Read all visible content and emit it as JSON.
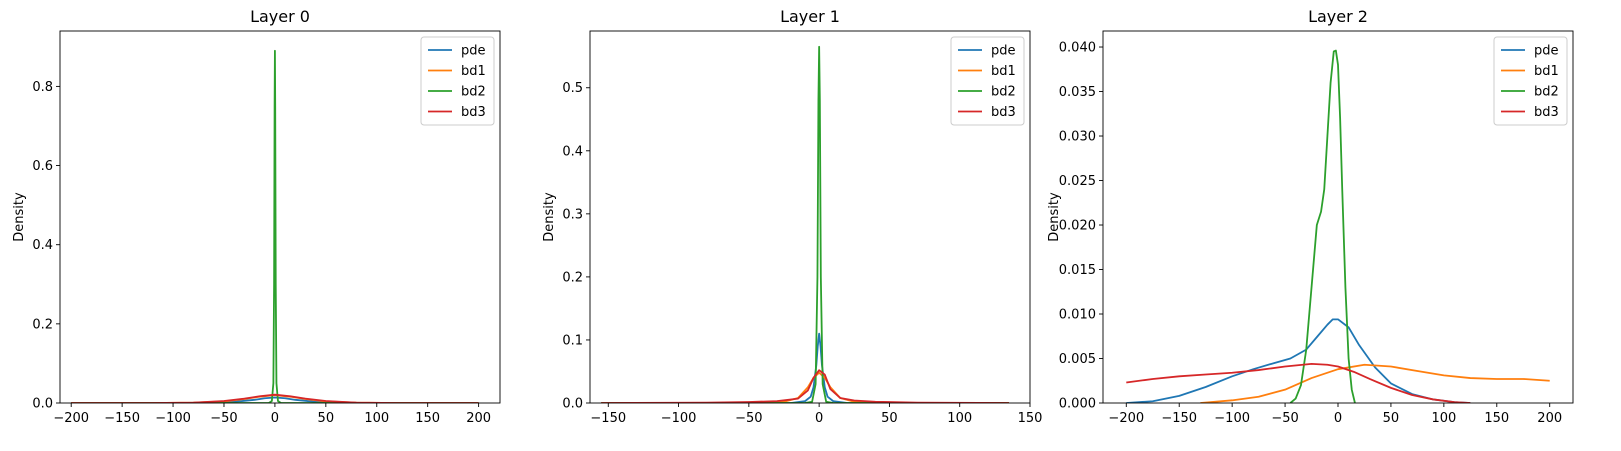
{
  "figure": {
    "background": "#ffffff"
  },
  "chart_data": [
    {
      "type": "line",
      "title": "Layer 0",
      "xlabel": "",
      "ylabel": "Density",
      "xlim": [
        -211,
        221
      ],
      "ylim": [
        0,
        0.94
      ],
      "xticks": [
        -200,
        -150,
        -100,
        -50,
        0,
        50,
        100,
        150,
        200
      ],
      "xtick_labels": [
        "−200",
        "−150",
        "−100",
        "−50",
        "0",
        "50",
        "100",
        "150",
        "200"
      ],
      "yticks": [
        0,
        0.2,
        0.4,
        0.6,
        0.8
      ],
      "ytick_labels": [
        "0.0",
        "0.2",
        "0.4",
        "0.6",
        "0.8"
      ],
      "legend": {
        "position": "top-right",
        "entries": [
          "pde",
          "bd1",
          "bd2",
          "bd3"
        ]
      },
      "grid": false,
      "series": [
        {
          "name": "pde",
          "color": "#1f77b4",
          "x": [
            -200,
            -100,
            -60,
            -40,
            -20,
            -10,
            0,
            10,
            20,
            40,
            60,
            100,
            200
          ],
          "y": [
            0,
            0,
            0.001,
            0.003,
            0.008,
            0.012,
            0.014,
            0.012,
            0.008,
            0.003,
            0.001,
            0,
            0
          ]
        },
        {
          "name": "bd1",
          "color": "#ff7f0e",
          "x": [
            -200,
            -120,
            -80,
            -50,
            -30,
            -15,
            0,
            15,
            30,
            50,
            80,
            120,
            200
          ],
          "y": [
            0,
            0,
            0.001,
            0.004,
            0.01,
            0.016,
            0.02,
            0.016,
            0.01,
            0.004,
            0.001,
            0,
            0
          ]
        },
        {
          "name": "bd2",
          "color": "#2ca02c",
          "x": [
            -200,
            -6,
            -3,
            -1.5,
            -0.8,
            -0.3,
            0,
            0.3,
            0.8,
            1.5,
            3,
            6,
            200
          ],
          "y": [
            0,
            0,
            0.005,
            0.05,
            0.3,
            0.75,
            0.89,
            0.75,
            0.3,
            0.05,
            0.005,
            0,
            0
          ]
        },
        {
          "name": "bd3",
          "color": "#d62728",
          "x": [
            -200,
            -120,
            -80,
            -50,
            -30,
            -15,
            0,
            15,
            30,
            50,
            80,
            120,
            200
          ],
          "y": [
            0,
            0,
            0.001,
            0.005,
            0.011,
            0.017,
            0.021,
            0.017,
            0.011,
            0.005,
            0.001,
            0,
            0
          ]
        }
      ]
    },
    {
      "type": "line",
      "title": "Layer 1",
      "xlabel": "",
      "ylabel": "Density",
      "xlim": [
        -163,
        150
      ],
      "ylim": [
        0,
        0.59
      ],
      "xticks": [
        -150,
        -100,
        -50,
        0,
        50,
        100,
        150
      ],
      "xtick_labels": [
        "−150",
        "−100",
        "−50",
        "0",
        "50",
        "100",
        "150"
      ],
      "yticks": [
        0,
        0.1,
        0.2,
        0.3,
        0.4,
        0.5
      ],
      "ytick_labels": [
        "0.0",
        "0.1",
        "0.2",
        "0.3",
        "0.4",
        "0.5"
      ],
      "legend": {
        "position": "top-right",
        "entries": [
          "pde",
          "bd1",
          "bd2",
          "bd3"
        ]
      },
      "grid": false,
      "series": [
        {
          "name": "pde",
          "color": "#1f77b4",
          "x": [
            -155,
            -20,
            -10,
            -6,
            -4,
            -2,
            -1,
            0,
            1,
            2,
            4,
            6,
            10,
            20,
            135
          ],
          "y": [
            0,
            0,
            0.003,
            0.01,
            0.025,
            0.06,
            0.09,
            0.11,
            0.09,
            0.06,
            0.025,
            0.01,
            0.003,
            0,
            0
          ]
        },
        {
          "name": "bd1",
          "color": "#ff7f0e",
          "x": [
            -155,
            -40,
            -25,
            -15,
            -8,
            -4,
            0,
            4,
            8,
            15,
            25,
            40,
            135
          ],
          "y": [
            0,
            0,
            0.002,
            0.008,
            0.025,
            0.04,
            0.048,
            0.04,
            0.025,
            0.008,
            0.002,
            0,
            0
          ]
        },
        {
          "name": "bd2",
          "color": "#2ca02c",
          "x": [
            -155,
            -10,
            -5,
            -2.5,
            -1.2,
            -0.5,
            0,
            0.5,
            1.2,
            2.5,
            5,
            10,
            135
          ],
          "y": [
            0,
            0,
            0.002,
            0.03,
            0.2,
            0.48,
            0.565,
            0.48,
            0.2,
            0.03,
            0.002,
            0,
            0
          ]
        },
        {
          "name": "bd3",
          "color": "#d62728",
          "x": [
            -155,
            -80,
            -50,
            -30,
            -15,
            -8,
            -4,
            0,
            4,
            8,
            15,
            25,
            40,
            70,
            135
          ],
          "y": [
            0,
            0.0005,
            0.0015,
            0.003,
            0.007,
            0.02,
            0.04,
            0.052,
            0.045,
            0.022,
            0.008,
            0.004,
            0.002,
            0.0005,
            0
          ]
        }
      ]
    },
    {
      "type": "line",
      "title": "Layer 2",
      "xlabel": "",
      "ylabel": "Density",
      "xlim": [
        -222,
        222
      ],
      "ylim": [
        0,
        0.0418
      ],
      "xticks": [
        -200,
        -150,
        -100,
        -50,
        0,
        50,
        100,
        150,
        200
      ],
      "xtick_labels": [
        "−200",
        "−150",
        "−100",
        "−50",
        "0",
        "50",
        "100",
        "150",
        "200"
      ],
      "yticks": [
        0,
        0.005,
        0.01,
        0.015,
        0.02,
        0.025,
        0.03,
        0.035,
        0.04
      ],
      "ytick_labels": [
        "0.000",
        "0.005",
        "0.010",
        "0.015",
        "0.020",
        "0.025",
        "0.030",
        "0.035",
        "0.040"
      ],
      "legend": {
        "position": "top-right",
        "entries": [
          "pde",
          "bd1",
          "bd2",
          "bd3"
        ]
      },
      "grid": false,
      "series": [
        {
          "name": "pde",
          "color": "#1f77b4",
          "x": [
            -200,
            -175,
            -150,
            -125,
            -100,
            -80,
            -60,
            -45,
            -30,
            -20,
            -10,
            -5,
            0,
            10,
            20,
            35,
            50,
            70,
            90,
            110,
            125
          ],
          "y": [
            0,
            0.0002,
            0.0008,
            0.0018,
            0.003,
            0.0038,
            0.0045,
            0.005,
            0.006,
            0.0074,
            0.0088,
            0.0094,
            0.0094,
            0.0085,
            0.0065,
            0.004,
            0.0022,
            0.001,
            0.0004,
            0.0001,
            0
          ]
        },
        {
          "name": "bd1",
          "color": "#ff7f0e",
          "x": [
            -130,
            -100,
            -75,
            -50,
            -25,
            0,
            25,
            50,
            75,
            100,
            125,
            150,
            175,
            200
          ],
          "y": [
            0,
            0.0003,
            0.0007,
            0.0015,
            0.0028,
            0.0038,
            0.0043,
            0.0041,
            0.0036,
            0.0031,
            0.0028,
            0.0027,
            0.0027,
            0.0025
          ]
        },
        {
          "name": "bd2",
          "color": "#2ca02c",
          "x": [
            -45,
            -40,
            -35,
            -30,
            -25,
            -20,
            -16,
            -13,
            -10,
            -7,
            -4,
            -2,
            0,
            2,
            4,
            7,
            10,
            13,
            16
          ],
          "y": [
            0,
            0.0005,
            0.002,
            0.006,
            0.013,
            0.02,
            0.0215,
            0.024,
            0.03,
            0.036,
            0.0395,
            0.0396,
            0.038,
            0.032,
            0.024,
            0.013,
            0.005,
            0.0015,
            0
          ]
        },
        {
          "name": "bd3",
          "color": "#d62728",
          "x": [
            -200,
            -175,
            -150,
            -125,
            -100,
            -75,
            -50,
            -25,
            -10,
            0,
            15,
            30,
            50,
            70,
            90,
            110,
            125
          ],
          "y": [
            0.0023,
            0.0027,
            0.003,
            0.0032,
            0.0034,
            0.0037,
            0.0041,
            0.0044,
            0.0043,
            0.0041,
            0.0035,
            0.0027,
            0.0017,
            0.0009,
            0.0004,
            0.0001,
            0
          ]
        }
      ]
    }
  ]
}
